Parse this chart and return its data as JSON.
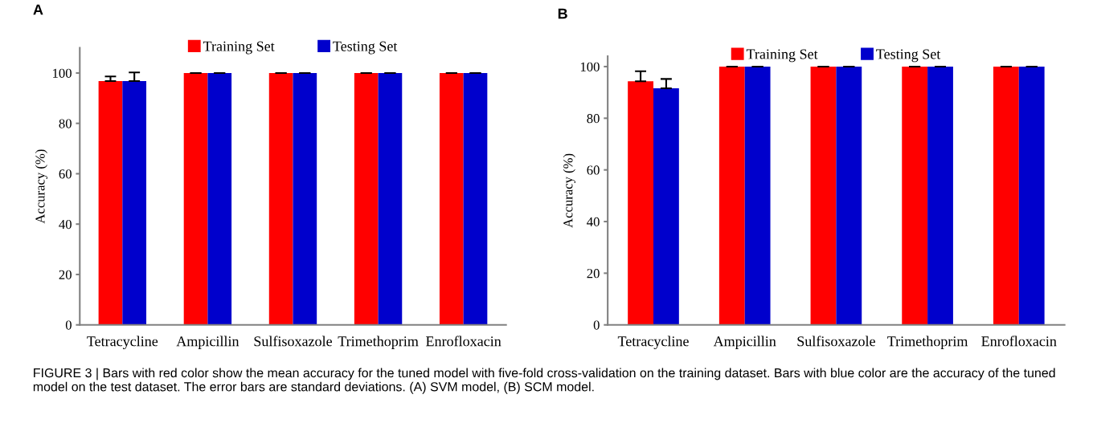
{
  "chart_data": [
    {
      "type": "bar",
      "title": "A",
      "ylabel": "Accuracy (%)",
      "categories": [
        "Tetracycline",
        "Ampicillin",
        "Sulfisoxazole",
        "Trimethoprim",
        "Enrofloxacin"
      ],
      "ylim": [
        0,
        110
      ],
      "yticks": [
        0,
        20,
        40,
        60,
        80,
        100
      ],
      "legend": "top",
      "grid": false,
      "series": [
        {
          "name": "Training Set",
          "color": "#ff0000",
          "values": [
            96.8,
            100,
            100,
            100,
            100
          ],
          "errors": [
            1.8,
            0,
            0,
            0,
            0
          ]
        },
        {
          "name": "Testing Set",
          "color": "#0000cc",
          "values": [
            96.8,
            100,
            100,
            100,
            100
          ],
          "errors": [
            3.4,
            0,
            0,
            0,
            0
          ]
        }
      ],
      "annotations": [
        "FIGURE 3 | Bars with red color show the mean accuracy for the tuned model with five-fold cross-validation on the training dataset. Bars with blue color are the accuracy of the tuned model on the test dataset. The error bars are standard deviations. (A) SVM model, (B) SCM model."
      ]
    },
    {
      "type": "bar",
      "title": "B",
      "ylabel": "Accuracy (%)",
      "categories": [
        "Tetracycline",
        "Ampicillin",
        "Sulfisoxazole",
        "Trimethoprim",
        "Enrofloxacin"
      ],
      "ylim": [
        0,
        104
      ],
      "yticks": [
        0,
        20,
        40,
        60,
        80,
        100
      ],
      "legend": "top",
      "grid": false,
      "series": [
        {
          "name": "Training Set",
          "color": "#ff0000",
          "values": [
            94.3,
            100,
            100,
            100,
            100
          ],
          "errors": [
            3.9,
            0,
            0,
            0,
            0
          ]
        },
        {
          "name": "Testing Set",
          "color": "#0000cc",
          "values": [
            91.6,
            100,
            100,
            100,
            100
          ],
          "errors": [
            3.6,
            0,
            0,
            0,
            0
          ]
        }
      ]
    }
  ]
}
